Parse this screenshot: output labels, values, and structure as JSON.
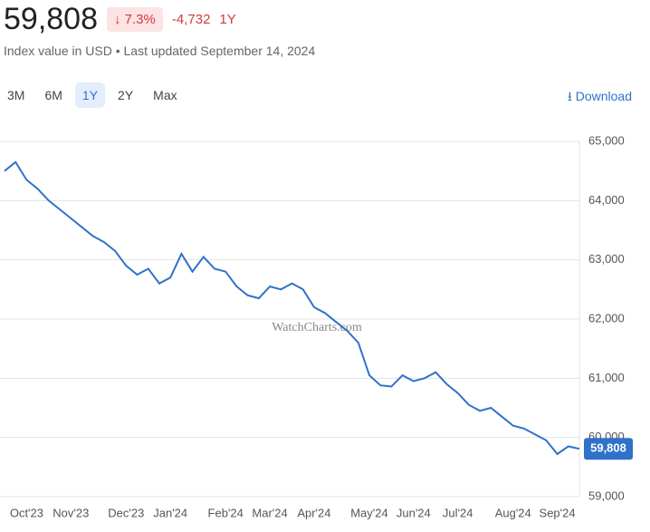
{
  "header": {
    "value": "59,808",
    "change_pct": "7.3%",
    "change_abs": "-4,732",
    "change_period": "1Y",
    "subtitle": "Index value in USD • Last updated September 14, 2024",
    "download": "Download"
  },
  "controls": {
    "ranges": [
      "3M",
      "6M",
      "1Y",
      "2Y",
      "Max"
    ],
    "active": "1Y"
  },
  "watermark": "WatchCharts.com",
  "chart_data": {
    "type": "line",
    "categories": [
      null,
      null,
      "Oct'23",
      null,
      null,
      null,
      "Nov'23",
      null,
      null,
      null,
      null,
      "Dec'23",
      null,
      null,
      null,
      "Jan'24",
      null,
      null,
      null,
      null,
      "Feb'24",
      null,
      null,
      null,
      "Mar'24",
      null,
      null,
      null,
      "Apr'24",
      null,
      null,
      null,
      null,
      "May'24",
      null,
      null,
      null,
      "Jun'24",
      null,
      null,
      null,
      "Jul'24",
      null,
      null,
      null,
      null,
      "Aug'24",
      null,
      null,
      null,
      "Sep'24",
      null,
      null
    ],
    "series": [
      {
        "name": "Index value",
        "color": "#2f72c8",
        "values": [
          64500,
          64650,
          64350,
          64200,
          64000,
          63850,
          63700,
          63550,
          63400,
          63300,
          63150,
          62900,
          62750,
          62850,
          62600,
          62700,
          63100,
          62800,
          63050,
          62850,
          62800,
          62550,
          62400,
          62350,
          62550,
          62500,
          62600,
          62500,
          62200,
          62100,
          61950,
          61800,
          61600,
          61050,
          60880,
          60860,
          61050,
          60950,
          61000,
          61100,
          60900,
          60750,
          60550,
          60450,
          60500,
          60350,
          60200,
          60150,
          60050,
          59950,
          59720,
          59850,
          59808
        ]
      }
    ],
    "ylim": [
      59000,
      65000
    ],
    "yticks": [
      {
        "value": 59000,
        "label": "59,000"
      },
      {
        "value": 60000,
        "label": "60,000"
      },
      {
        "value": 61000,
        "label": "61,000"
      },
      {
        "value": 62000,
        "label": "62,000"
      },
      {
        "value": 63000,
        "label": "63,000"
      },
      {
        "value": 64000,
        "label": "64,000"
      },
      {
        "value": 65000,
        "label": "65,000"
      }
    ],
    "grid": true
  }
}
